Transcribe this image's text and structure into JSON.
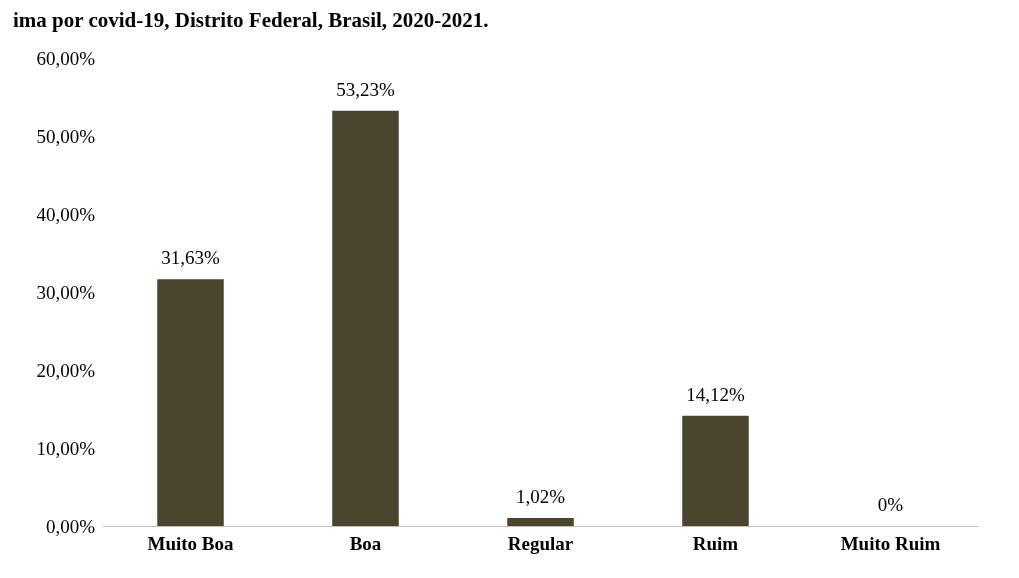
{
  "chart_data": {
    "type": "bar",
    "title": "ima por covid-19, Distrito Federal, Brasil, 2020-2021.",
    "categories": [
      "Muito Boa",
      "Boa",
      "Regular",
      "Ruim",
      "Muito Ruim"
    ],
    "values": [
      31.63,
      53.23,
      1.02,
      14.12,
      0
    ],
    "value_labels": [
      "31,63%",
      "53,23%",
      "1,02%",
      "14,12%",
      "0%"
    ],
    "color": "#4b452d",
    "ylim": [
      0,
      60
    ],
    "yticks": [
      {
        "value": 0,
        "label": "0,00%"
      },
      {
        "value": 10,
        "label": "10,00%"
      },
      {
        "value": 20,
        "label": "20,00%"
      },
      {
        "value": 30,
        "label": "30,00%"
      },
      {
        "value": 40,
        "label": "40,00%"
      },
      {
        "value": 50,
        "label": "50,00%"
      },
      {
        "value": 60,
        "label": "60,00%"
      }
    ],
    "grid": false
  }
}
